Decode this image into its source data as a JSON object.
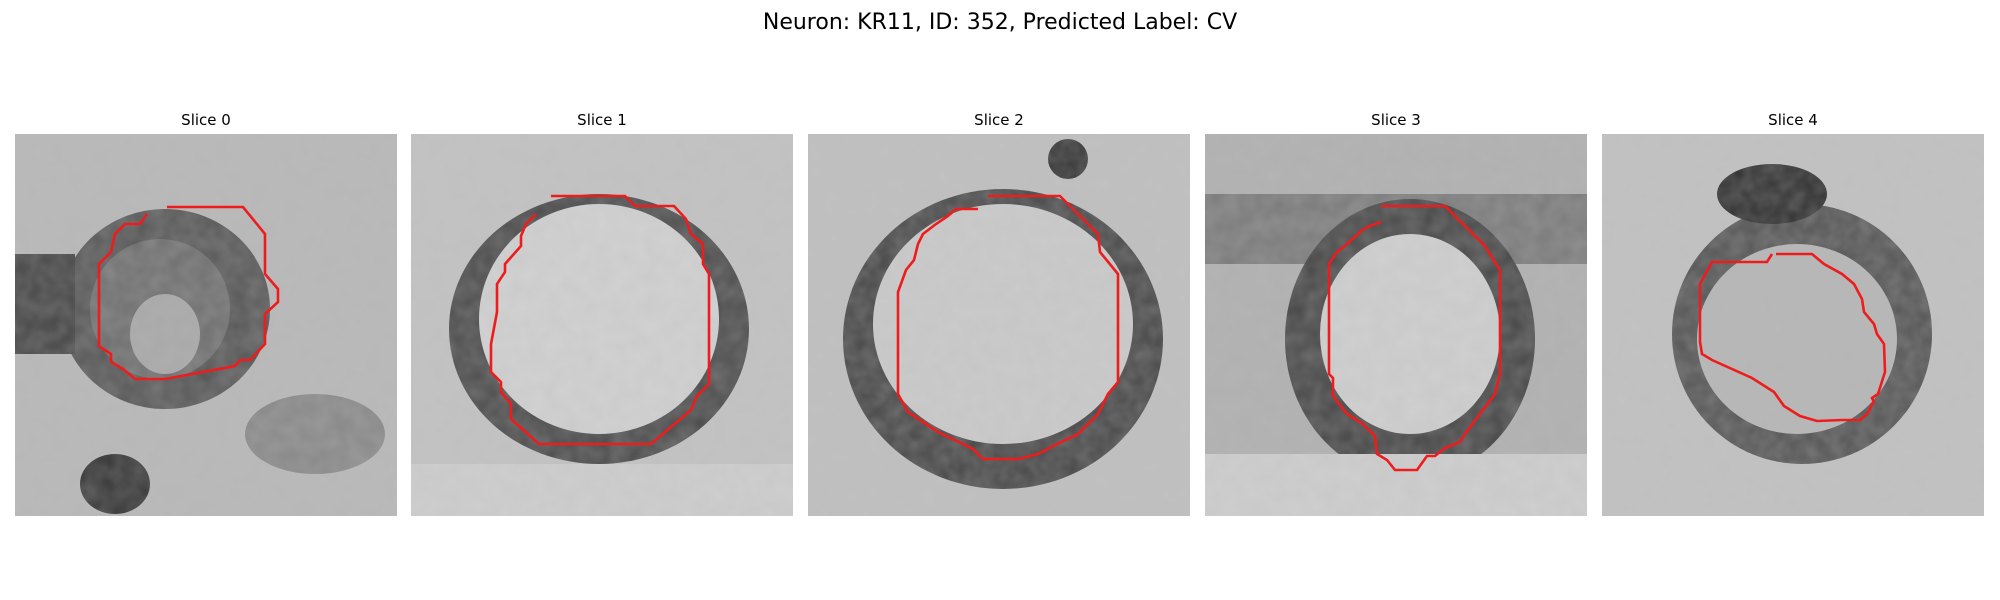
{
  "figure": {
    "title": "Neuron: KR11, ID: 352, Predicted Label: CV"
  },
  "contour_color": "#ee1c1c",
  "slices": [
    {
      "title": "Slice 0"
    },
    {
      "title": "Slice 1"
    },
    {
      "title": "Slice 2"
    },
    {
      "title": "Slice 3"
    },
    {
      "title": "Slice 4"
    }
  ]
}
